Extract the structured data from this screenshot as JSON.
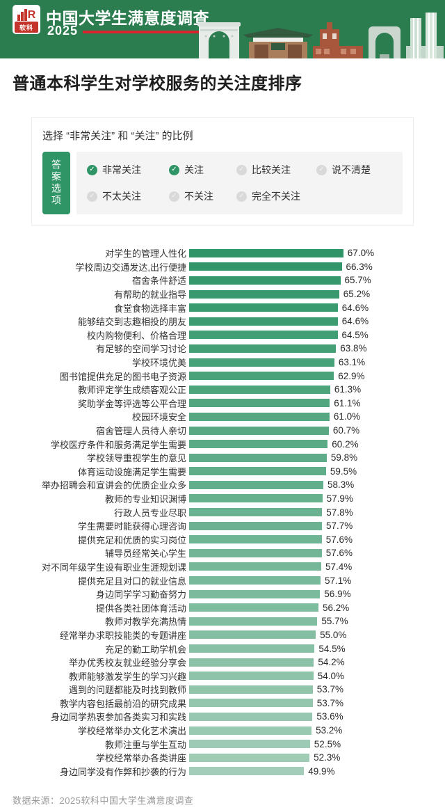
{
  "header": {
    "logo": {
      "brand": "软科",
      "glyph": "bar-chart-R"
    },
    "title": "中国大学生满意度调查",
    "year": "2025"
  },
  "page_title": "普通本科学生对学校服务的关注度排序",
  "answer_box": {
    "subtitle": "选择 “非常关注” 和 “关注” 的比例",
    "tab_label": "答案选项",
    "options": [
      {
        "label": "非常关注",
        "checked": true
      },
      {
        "label": "关注",
        "checked": true
      },
      {
        "label": "比较关注",
        "checked": false
      },
      {
        "label": "说不清楚",
        "checked": false
      },
      {
        "label": "不太关注",
        "checked": false
      },
      {
        "label": "不关注",
        "checked": false
      },
      {
        "label": "完全不关注",
        "checked": false
      }
    ]
  },
  "chart_data": {
    "type": "bar",
    "orientation": "horizontal",
    "title": "普通本科学生对学校服务的关注度排序",
    "unit": "%",
    "xlim": [
      0,
      67
    ],
    "legend": null,
    "grid": false,
    "bar_color_start": "#2F9568",
    "bar_color_end": "#A3CDB8",
    "categories": [
      "对学生的管理人性化",
      "学校周边交通发达,出行便捷",
      "宿舍条件舒适",
      "有帮助的就业指导",
      "食堂食物选择丰富",
      "能够结交到志趣相投的朋友",
      "校内购物便利、价格合理",
      "有足够的空间学习讨论",
      "学校环境优美",
      "图书馆提供充足的图书电子资源",
      "教师评定学生成绩客观公正",
      "奖助学金等评选等公平合理",
      "校园环境安全",
      "宿舍管理人员待人亲切",
      "学校医疗条件和服务满足学生需要",
      "学校领导重视学生的意见",
      "体育运动设施满足学生需要",
      "举办招聘会和宣讲会的优质企业众多",
      "教师的专业知识渊博",
      "行政人员专业尽职",
      "学生需要时能获得心理咨询",
      "提供充足和优质的实习岗位",
      "辅导员经常关心学生",
      "对不同年级学生设有职业生涯规划课",
      "提供充足且对口的就业信息",
      "身边同学学习勤奋努力",
      "提供各类社团体育活动",
      "教师对教学充满热情",
      "经常举办求职技能类的专题讲座",
      "充足的勤工助学机会",
      "举办优秀校友就业经验分享会",
      "教师能够激发学生的学习兴趣",
      "遇到的问题都能及时找到教师",
      "教学内容包括最前沿的研究成果",
      "身边同学热衷参加各类实习和实践",
      "学校经常举办文化艺术演出",
      "教师注重与学生互动",
      "学校经常举办各类讲座",
      "身边同学没有作弊和抄袭的行为"
    ],
    "values": [
      67.0,
      66.3,
      65.7,
      65.2,
      64.6,
      64.6,
      64.5,
      63.8,
      63.1,
      62.9,
      61.3,
      61.1,
      61.0,
      60.7,
      60.2,
      59.8,
      59.5,
      58.3,
      57.9,
      57.8,
      57.7,
      57.6,
      57.6,
      57.4,
      57.1,
      56.9,
      56.2,
      55.7,
      55.0,
      54.5,
      54.2,
      54.0,
      53.7,
      53.7,
      53.6,
      53.2,
      52.5,
      52.3,
      49.9
    ]
  },
  "footer": {
    "source": "数据来源：2025软科中国大学生满意度调查"
  },
  "colors": {
    "header_bg": "#2B7D4F",
    "accent_red": "#D9232E",
    "logo_red": "#C4342B",
    "check_green": "#2F9566",
    "check_gray": "#D9D9D9"
  }
}
